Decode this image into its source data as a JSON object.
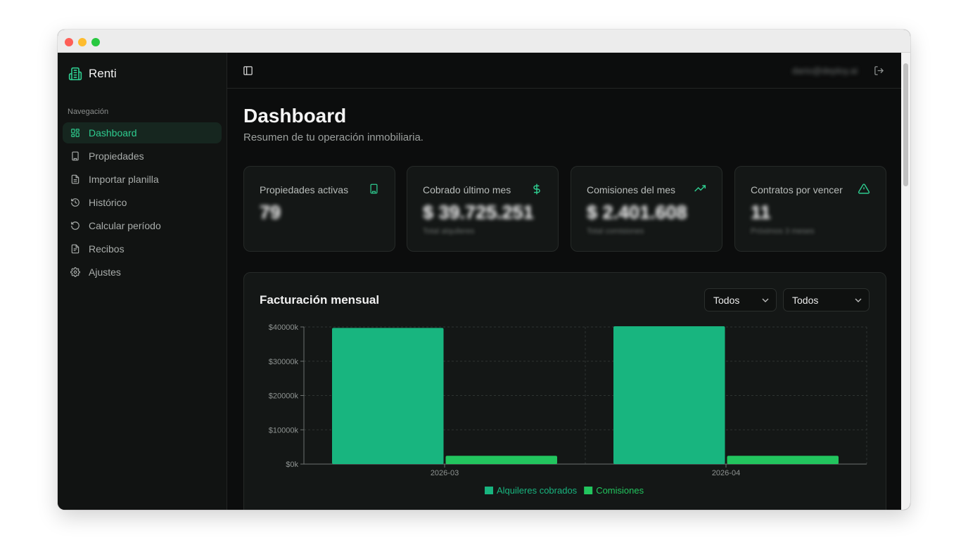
{
  "app": {
    "name": "Renti"
  },
  "colors": {
    "accent": "#2ecc8f",
    "bar_primary": "#18b57f",
    "bar_secondary": "#22c55e"
  },
  "sidebar": {
    "section_title": "Navegación",
    "items": [
      {
        "label": "Dashboard",
        "icon": "grid-icon"
      },
      {
        "label": "Propiedades",
        "icon": "building-icon"
      },
      {
        "label": "Importar planilla",
        "icon": "file-icon"
      },
      {
        "label": "Histórico",
        "icon": "history-icon"
      },
      {
        "label": "Calcular período",
        "icon": "refresh-icon"
      },
      {
        "label": "Recibos",
        "icon": "receipt-icon"
      },
      {
        "label": "Ajustes",
        "icon": "gear-icon"
      }
    ]
  },
  "topbar": {
    "email": "dario@deploy.ai"
  },
  "page": {
    "title": "Dashboard",
    "subtitle": "Resumen de tu operación inmobiliaria."
  },
  "cards": [
    {
      "label": "Propiedades activas",
      "value": "79",
      "note": "",
      "icon": "building-icon"
    },
    {
      "label": "Cobrado último mes",
      "value": "$ 39.725.251",
      "note": "Total alquileres",
      "icon": "dollar-icon"
    },
    {
      "label": "Comisiones del mes",
      "value": "$ 2.401.608",
      "note": "Total comisiones",
      "icon": "trending-up-icon"
    },
    {
      "label": "Contratos por vencer",
      "value": "11",
      "note": "Próximos 3 meses",
      "icon": "alert-triangle-icon"
    }
  ],
  "chart_panel": {
    "title": "Facturación mensual",
    "filter1": "Todos",
    "filter2": "Todos"
  },
  "chart_data": {
    "type": "bar",
    "categories": [
      "2026-03",
      "2026-04"
    ],
    "series": [
      {
        "name": "Alquileres cobrados",
        "values": [
          39725,
          40200
        ],
        "color": "#18b57f"
      },
      {
        "name": "Comisiones",
        "values": [
          2400,
          2401
        ],
        "color": "#22c55e"
      }
    ],
    "yticks": [
      "$0k",
      "$10000k",
      "$20000k",
      "$30000k",
      "$40000k"
    ],
    "ylim": [
      0,
      40000
    ],
    "grid": true,
    "legend": "bottom"
  }
}
